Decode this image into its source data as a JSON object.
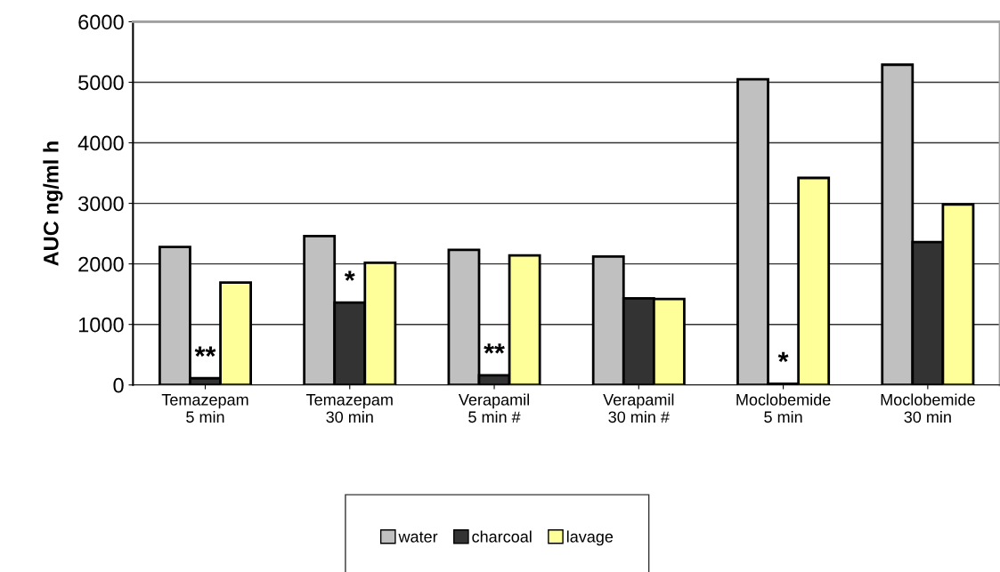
{
  "chart_data": {
    "type": "bar",
    "ylabel": "AUC ng/ml h",
    "categories": [
      "Temazepam\n5 min",
      "Temazepam\n30 min",
      "Verapamil\n5 min #",
      "Verapamil\n30 min #",
      "Moclobemide\n5 min",
      "Moclobemide\n30 min"
    ],
    "series": [
      {
        "name": "water",
        "color": "#c0c0c0",
        "values": [
          2280,
          2460,
          2230,
          2120,
          5050,
          5290
        ]
      },
      {
        "name": "charcoal",
        "color": "#333333",
        "values": [
          110,
          1360,
          160,
          1430,
          20,
          2360
        ]
      },
      {
        "name": "lavage",
        "color": "#ffff99",
        "values": [
          1690,
          2020,
          2140,
          1420,
          3420,
          2980
        ]
      }
    ],
    "annotations": [
      {
        "text": "**",
        "x": "Temazepam\n5 min",
        "y": 110
      },
      {
        "text": "*",
        "x": "Temazepam\n30 min",
        "y": 1360
      },
      {
        "text": "**",
        "x": "Verapamil\n5 min #",
        "y": 160
      },
      {
        "text": "*",
        "x": "Moclobemide\n5 min",
        "y": 20
      }
    ],
    "ylim": [
      0,
      6000
    ],
    "yticks": [
      0,
      1000,
      2000,
      3000,
      4000,
      5000,
      6000
    ],
    "grid": "y",
    "legend": "bottom"
  }
}
